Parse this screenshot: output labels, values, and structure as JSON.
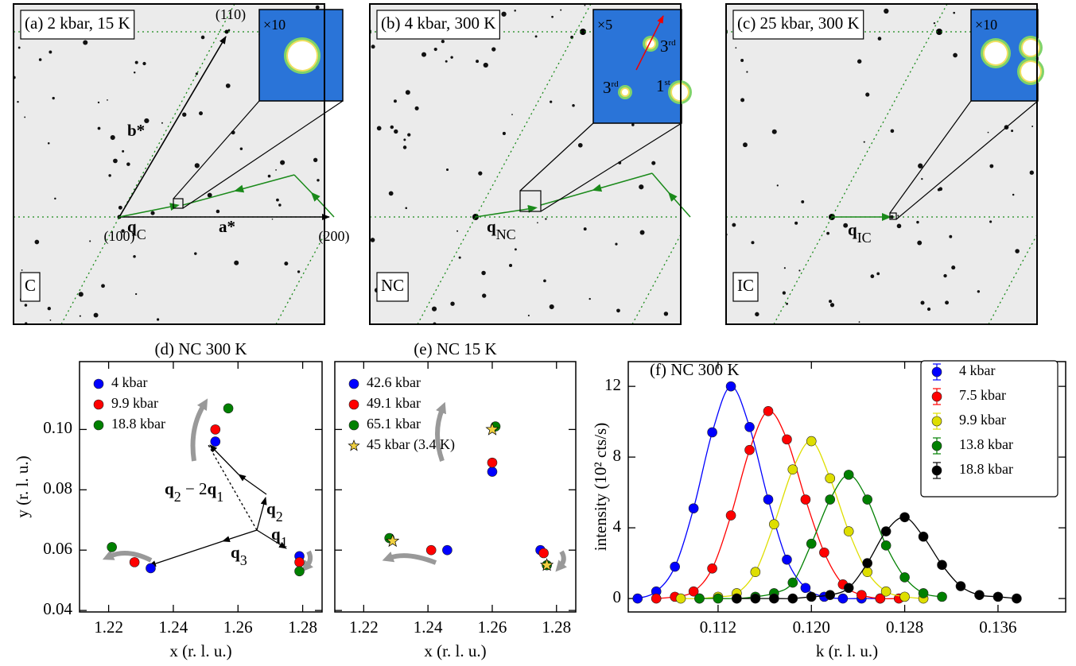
{
  "panels": [
    {
      "label": "(a) 2 kbar, 15 K",
      "phase": "C",
      "inset_scale": "×10",
      "hkl": [
        "(110)",
        "(100)",
        "(200)"
      ],
      "reciprocal": [
        "b*",
        "a*"
      ],
      "q": [
        "q",
        "C"
      ]
    },
    {
      "label": "(b) 4 kbar, 300 K",
      "phase": "NC",
      "inset_scale": "×5",
      "harmonics": [
        [
          "3",
          "rd"
        ],
        [
          "3",
          "rd"
        ],
        [
          "1",
          "st"
        ]
      ],
      "q": [
        "q",
        "NC"
      ]
    },
    {
      "label": "(c) 25 kbar, 300 K",
      "phase": "IC",
      "inset_scale": "×10",
      "q": [
        "q",
        "IC"
      ]
    }
  ],
  "chart_data": [
    {
      "type": "scatter",
      "title": "(d) NC 300 K",
      "x_label": "x (r. l. u.)",
      "y_label": "y (r. l. u.)",
      "xlim": [
        1.211,
        1.286
      ],
      "ylim": [
        0.0395,
        0.1225
      ],
      "xticks": [
        1.22,
        1.24,
        1.26,
        1.28
      ],
      "yticks": [
        0.04,
        0.06,
        0.08,
        {
          "value": 0.1,
          "label": "0.10"
        }
      ],
      "legend": "upper left",
      "series": [
        {
          "name": "4 kbar",
          "color": "#0000ff",
          "x": [
            1.253,
            1.233,
            1.279
          ],
          "values": [
            0.096,
            0.054,
            0.058
          ]
        },
        {
          "name": "9.9 kbar",
          "color": "#ff0000",
          "x": [
            1.253,
            1.228,
            1.279
          ],
          "values": [
            0.1,
            0.056,
            0.056
          ]
        },
        {
          "name": "18.8 kbar",
          "color": "#008000",
          "x": [
            1.257,
            1.221,
            1.279
          ],
          "values": [
            0.107,
            0.061,
            0.053
          ]
        }
      ],
      "annotations": [
        [
          "q",
          "2",
          " − 2",
          "q",
          "1"
        ],
        [
          "q",
          "2"
        ],
        [
          "q",
          "1"
        ],
        [
          "q",
          "3"
        ]
      ]
    },
    {
      "type": "scatter",
      "title": "(e) NC 15 K",
      "x_label": "x (r. l. u.)",
      "xlim": [
        1.211,
        1.286
      ],
      "ylim": [
        0.0395,
        0.1225
      ],
      "xticks": [
        1.22,
        1.24,
        1.26,
        1.28
      ],
      "yticks": [
        0.04,
        0.06,
        0.08,
        0.1
      ],
      "ytick_labels": false,
      "legend": "upper left",
      "series": [
        {
          "name": "42.6 kbar",
          "color": "#0000ff",
          "x": [
            1.26,
            1.246,
            1.275
          ],
          "values": [
            0.086,
            0.06,
            0.06
          ]
        },
        {
          "name": "49.1 kbar",
          "color": "#ff0000",
          "x": [
            1.26,
            1.241,
            1.276
          ],
          "values": [
            0.089,
            0.06,
            0.059
          ]
        },
        {
          "name": "65.1 kbar",
          "color": "#008000",
          "x": [
            1.261,
            1.228,
            1.277
          ],
          "values": [
            0.101,
            0.064,
            0.055
          ]
        },
        {
          "name": "45 kbar (3.4 K)",
          "color": "#f0d040",
          "marker": "star",
          "x": [
            1.26,
            1.229,
            1.277
          ],
          "values": [
            0.1,
            0.063,
            0.055
          ]
        }
      ]
    },
    {
      "type": "line",
      "title": "(f) NC 300 K",
      "x_label": "k (r. l. u.)",
      "y_label": "intensity (10² cts/s)",
      "xlim": [
        0.1043,
        0.1418
      ],
      "ylim": [
        -0.76,
        13.4
      ],
      "xticks": [
        0.112,
        {
          "value": 0.12,
          "label": "0.120"
        },
        0.128,
        0.136
      ],
      "yticks": [
        0,
        4,
        8,
        12
      ],
      "legend": "upper right",
      "series": [
        {
          "name": "4 kbar",
          "color": "#0000ff",
          "x": [
            0.1051,
            0.1067,
            0.1083,
            0.1099,
            0.1115,
            0.1131,
            0.1147,
            0.1163,
            0.1179,
            0.1195,
            0.1211,
            0.1227,
            0.1243,
            0.1259
          ],
          "values": [
            0.0,
            0.4,
            1.8,
            5.1,
            9.4,
            12.0,
            9.7,
            5.6,
            2.2,
            0.6,
            0.1,
            0.0,
            0.0,
            0.0
          ]
        },
        {
          "name": "7.5 kbar",
          "color": "#ff0000",
          "x": [
            0.1067,
            0.1083,
            0.1099,
            0.1115,
            0.1131,
            0.1147,
            0.1163,
            0.1179,
            0.1195,
            0.1211,
            0.1227,
            0.1243,
            0.1259,
            0.1275
          ],
          "values": [
            0.0,
            0.1,
            0.4,
            1.7,
            4.7,
            8.4,
            10.6,
            9.0,
            5.6,
            2.6,
            0.8,
            0.2,
            0.0,
            0.0
          ]
        },
        {
          "name": "9.9 kbar",
          "color": "#dede00",
          "x": [
            0.1088,
            0.1104,
            0.112,
            0.1136,
            0.1152,
            0.1168,
            0.1184,
            0.12,
            0.1216,
            0.1232,
            0.1248,
            0.1264,
            0.128,
            0.1296
          ],
          "values": [
            0.0,
            0.0,
            0.1,
            0.3,
            1.5,
            4.2,
            7.3,
            8.9,
            6.8,
            3.8,
            1.5,
            0.4,
            0.1,
            0.0
          ]
        },
        {
          "name": "13.8 kbar",
          "color": "#008000",
          "x": [
            0.1104,
            0.112,
            0.1136,
            0.1152,
            0.1168,
            0.1184,
            0.12,
            0.1216,
            0.1232,
            0.1248,
            0.1264,
            0.128,
            0.1296,
            0.1312
          ],
          "values": [
            0.0,
            0.0,
            0.0,
            0.1,
            0.3,
            0.9,
            3.1,
            5.6,
            7.0,
            5.6,
            3.0,
            1.2,
            0.3,
            0.1
          ]
        },
        {
          "name": "18.8 kbar",
          "color": "#000000",
          "x": [
            0.1136,
            0.1152,
            0.1168,
            0.1184,
            0.12,
            0.1216,
            0.1232,
            0.1248,
            0.1264,
            0.128,
            0.1296,
            0.1312,
            0.1328,
            0.1344,
            0.136,
            0.1376
          ],
          "values": [
            0.0,
            0.0,
            0.0,
            0.0,
            0.1,
            0.2,
            0.6,
            2.0,
            3.8,
            4.6,
            3.5,
            1.9,
            0.7,
            0.2,
            0.1,
            0.0
          ]
        }
      ]
    }
  ]
}
